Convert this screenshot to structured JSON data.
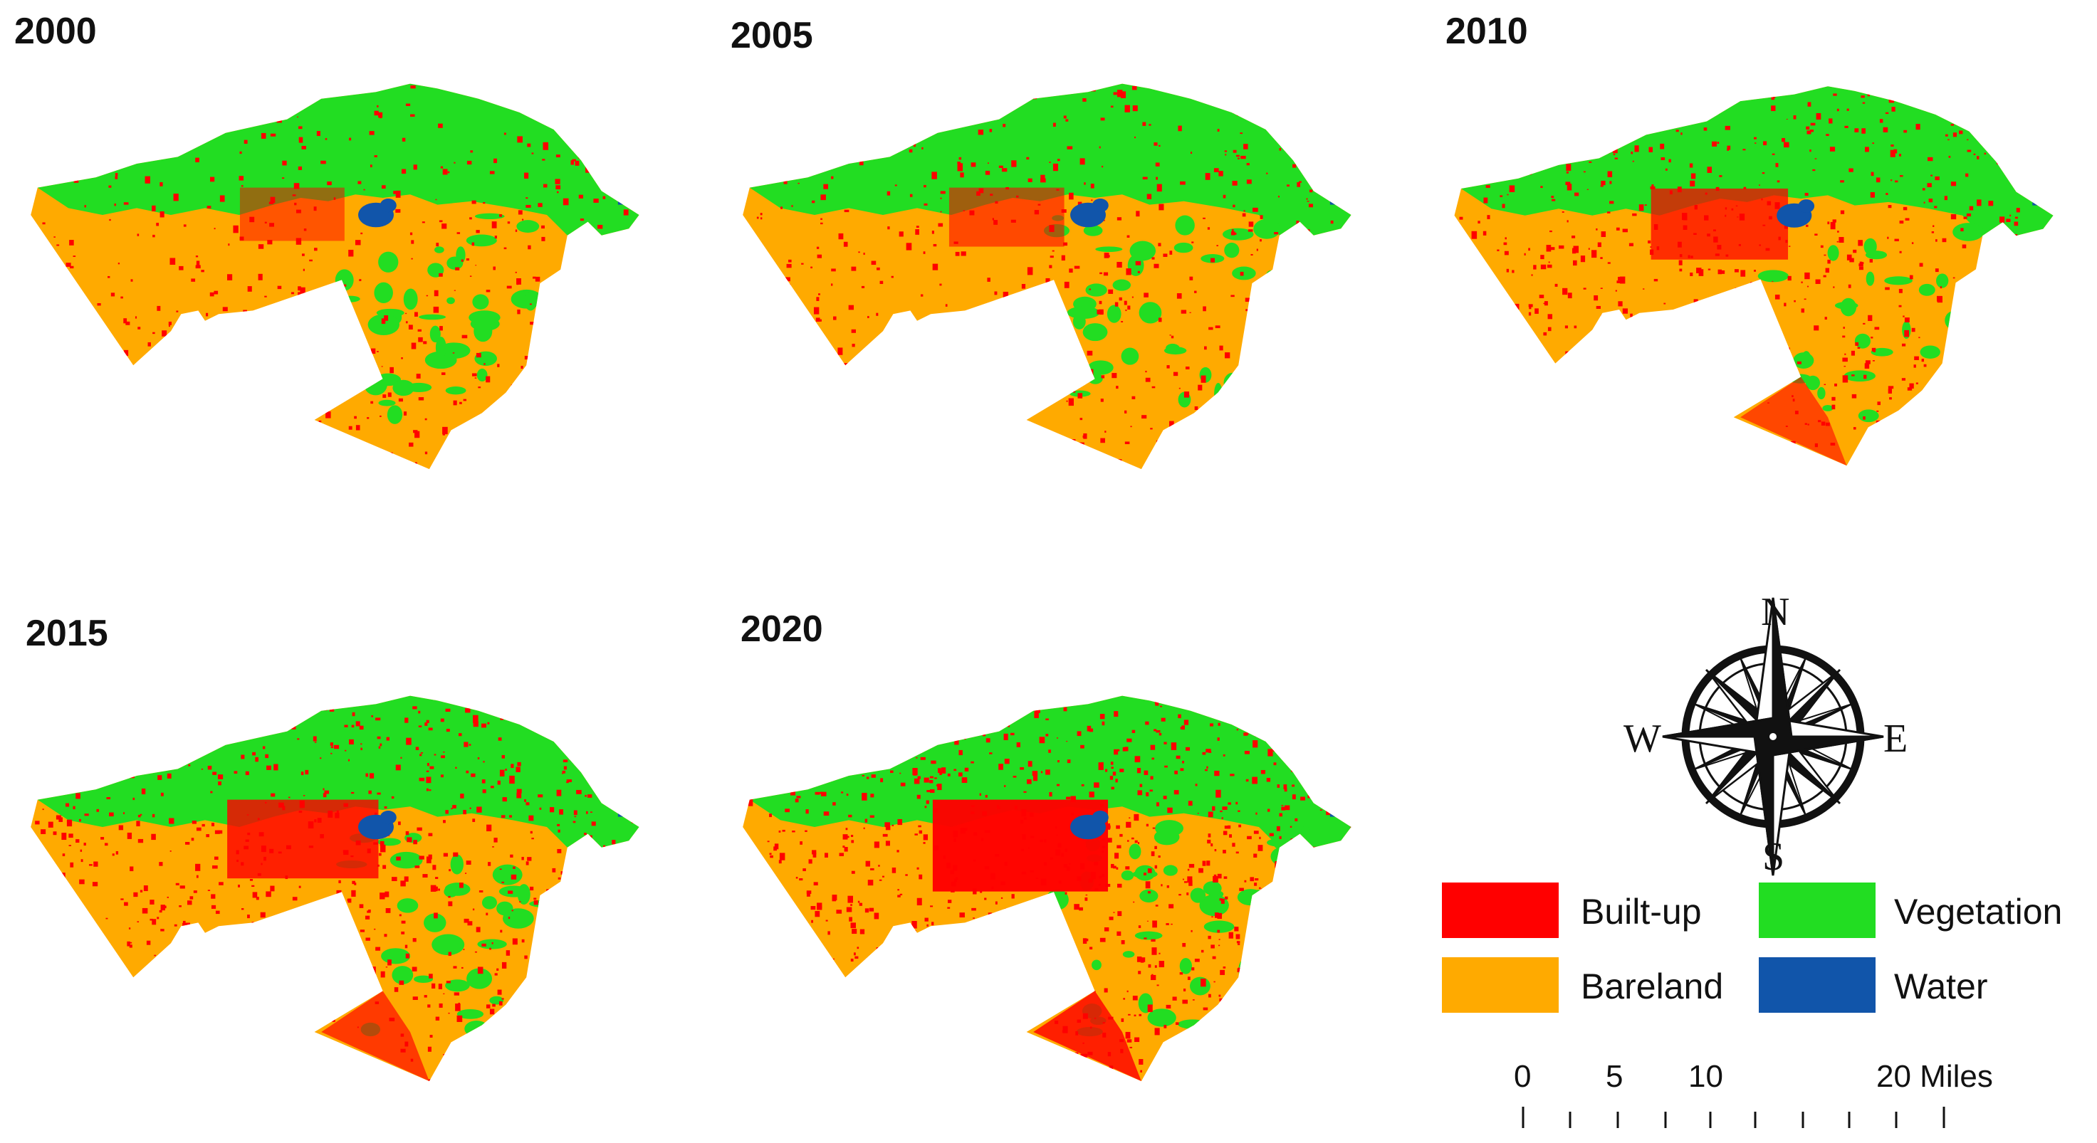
{
  "panels": [
    {
      "year": "2000",
      "builtup_level": 0.15
    },
    {
      "year": "2005",
      "builtup_level": 0.22
    },
    {
      "year": "2010",
      "builtup_level": 0.38
    },
    {
      "year": "2015",
      "builtup_level": 0.46
    },
    {
      "year": "2020",
      "builtup_level": 0.62
    }
  ],
  "compass": {
    "north": "N",
    "south": "S",
    "east": "E",
    "west": "W"
  },
  "legend": [
    {
      "key": "builtup",
      "label": "Built-up",
      "color": "#ff0000"
    },
    {
      "key": "vegetation",
      "label": "Vegetation",
      "color": "#22dd22"
    },
    {
      "key": "bareland",
      "label": "Bareland",
      "color": "#ffaa00"
    },
    {
      "key": "water",
      "label": "Water",
      "color": "#1155aa"
    }
  ],
  "scale_bar": {
    "ticks": [
      "0",
      "5",
      "10",
      "20 Miles"
    ]
  }
}
